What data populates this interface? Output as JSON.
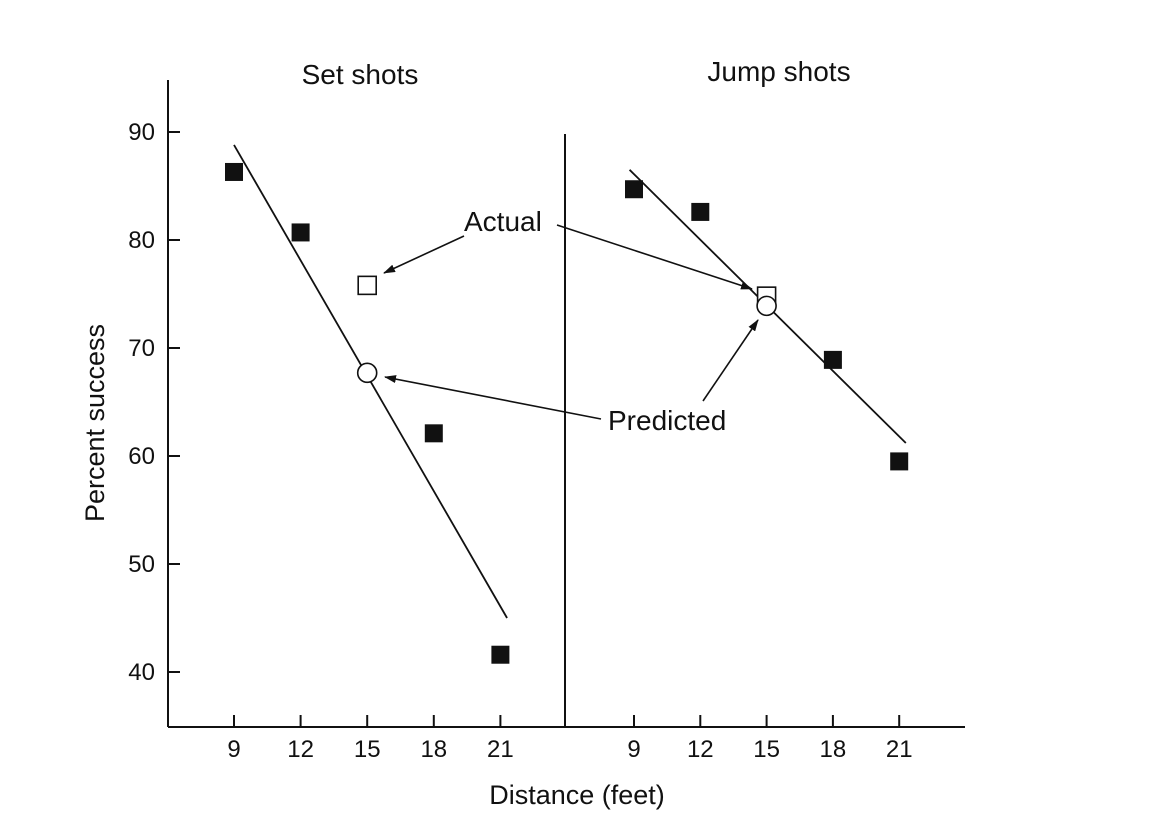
{
  "chart_data": {
    "type": "scatter",
    "xlabel": "Distance (feet)",
    "ylabel": "Percent success",
    "ylim": [
      35,
      95
    ],
    "yticks": [
      40,
      50,
      60,
      70,
      80,
      90
    ],
    "grid": false,
    "panels": [
      {
        "title": "Set shots",
        "xticks": [
          9,
          12,
          15,
          18,
          21
        ],
        "series": [
          {
            "points": [
              {
                "x": 9,
                "y": 86.3
              },
              {
                "x": 12,
                "y": 80.7
              },
              {
                "x": 18,
                "y": 62.1
              },
              {
                "x": 21,
                "y": 41.6
              }
            ]
          }
        ],
        "actual": {
          "x": 15,
          "y": 75.8
        },
        "predicted": {
          "x": 15,
          "y": 67.7
        },
        "fit": {
          "x1": 9,
          "y1": 88.8,
          "x2": 21.3,
          "y2": 45.0
        }
      },
      {
        "title": "Jump shots",
        "xticks": [
          9,
          12,
          15,
          18,
          21
        ],
        "series": [
          {
            "points": [
              {
                "x": 9,
                "y": 84.7
              },
              {
                "x": 12,
                "y": 82.6
              },
              {
                "x": 18,
                "y": 68.9
              },
              {
                "x": 21,
                "y": 59.5
              }
            ]
          }
        ],
        "actual": {
          "x": 15,
          "y": 74.8
        },
        "predicted": {
          "x": 15,
          "y": 73.9
        },
        "fit": {
          "x1": 8.8,
          "y1": 86.5,
          "x2": 21.3,
          "y2": 61.2
        }
      }
    ],
    "annotations": [
      {
        "text": "Actual"
      },
      {
        "text": "Predicted"
      }
    ]
  }
}
